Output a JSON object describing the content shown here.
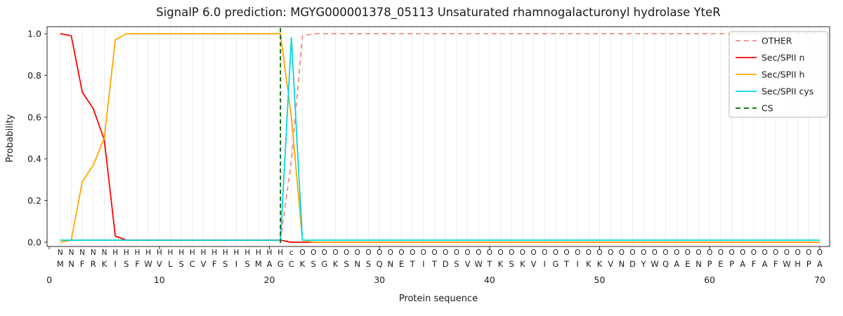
{
  "chart_data": {
    "type": "line",
    "title": "SignalP 6.0 prediction: MGYG000001378_05113 Unsaturated rhamnogalacturonyl hydrolase YteR",
    "xlabel": "Protein sequence",
    "ylabel": "Probability",
    "xlim": [
      -0.2,
      70.9
    ],
    "ylim": [
      0.0,
      1.0
    ],
    "xticks": [
      0,
      10,
      20,
      30,
      40,
      50,
      60,
      70
    ],
    "yticks": [
      0.0,
      0.2,
      0.4,
      0.6,
      0.8,
      1.0
    ],
    "grid": "vertical-gridline-per-residue",
    "legend_position": "upper-right",
    "x_start": 1,
    "sequence": "MNFRKISFWVLSCVFSISMAGCKSGKSNSQNETITDSVWTKSKVIGTIKKVNDYWQAENPEPAFAFWHPA",
    "region_labels": "NNNNNHHHHHHHHHHHHHHHHcOOOOOOOOOOOOOOOOOOOOOOOOOOOOOOOOOOOOOOOOOOOOOOOO",
    "region_colors": {
      "N": "#ff0000",
      "H": "#ffa600",
      "c": "#00d8e0",
      "O": "#9e9e9e"
    },
    "series": [
      {
        "name": "OTHER",
        "color": "#f28c8c",
        "dash": true,
        "values": [
          0.01,
          0.01,
          0.01,
          0.01,
          0.01,
          0.01,
          0.01,
          0.01,
          0.01,
          0.01,
          0.01,
          0.01,
          0.01,
          0.01,
          0.01,
          0.01,
          0.01,
          0.01,
          0.01,
          0.01,
          0.01,
          0.39,
          0.99,
          1.0,
          1.0,
          1.0,
          1.0,
          1.0,
          1.0,
          1.0,
          1.0,
          1.0,
          1.0,
          1.0,
          1.0,
          1.0,
          1.0,
          1.0,
          1.0,
          1.0,
          1.0,
          1.0,
          1.0,
          1.0,
          1.0,
          1.0,
          1.0,
          1.0,
          1.0,
          1.0,
          1.0,
          1.0,
          1.0,
          1.0,
          1.0,
          1.0,
          1.0,
          1.0,
          1.0,
          1.0,
          1.0,
          1.0,
          1.0,
          1.0,
          1.0,
          1.0,
          1.0,
          1.0,
          1.0,
          1.0
        ]
      },
      {
        "name": "Sec/SPII n",
        "color": "#ff0000",
        "dash": false,
        "values": [
          1.0,
          0.99,
          0.72,
          0.64,
          0.49,
          0.03,
          0.01,
          0.01,
          0.01,
          0.01,
          0.01,
          0.01,
          0.01,
          0.01,
          0.01,
          0.01,
          0.01,
          0.01,
          0.01,
          0.01,
          0.01,
          0.0,
          0.0,
          0.0,
          0.0,
          0.0,
          0.0,
          0.0,
          0.0,
          0.0,
          0.0,
          0.0,
          0.0,
          0.0,
          0.0,
          0.0,
          0.0,
          0.0,
          0.0,
          0.0,
          0.0,
          0.0,
          0.0,
          0.0,
          0.0,
          0.0,
          0.0,
          0.0,
          0.0,
          0.0,
          0.0,
          0.0,
          0.0,
          0.0,
          0.0,
          0.0,
          0.0,
          0.0,
          0.0,
          0.0,
          0.0,
          0.0,
          0.0,
          0.0,
          0.0,
          0.0,
          0.0,
          0.0,
          0.0,
          0.0
        ]
      },
      {
        "name": "Sec/SPII h",
        "color": "#ffa600",
        "dash": false,
        "values": [
          0.0,
          0.01,
          0.29,
          0.37,
          0.5,
          0.97,
          1.0,
          1.0,
          1.0,
          1.0,
          1.0,
          1.0,
          1.0,
          1.0,
          1.0,
          1.0,
          1.0,
          1.0,
          1.0,
          1.0,
          1.0,
          0.6,
          0.01,
          0.0,
          0.0,
          0.0,
          0.0,
          0.0,
          0.0,
          0.0,
          0.0,
          0.0,
          0.0,
          0.0,
          0.0,
          0.0,
          0.0,
          0.0,
          0.0,
          0.0,
          0.0,
          0.0,
          0.0,
          0.0,
          0.0,
          0.0,
          0.0,
          0.0,
          0.0,
          0.0,
          0.0,
          0.0,
          0.0,
          0.0,
          0.0,
          0.0,
          0.0,
          0.0,
          0.0,
          0.0,
          0.0,
          0.0,
          0.0,
          0.0,
          0.0,
          0.0,
          0.0,
          0.0,
          0.0,
          0.0
        ]
      },
      {
        "name": "Sec/SPII cys",
        "color": "#00d8e0",
        "dash": false,
        "values": [
          0.01,
          0.01,
          0.01,
          0.01,
          0.01,
          0.01,
          0.01,
          0.01,
          0.01,
          0.01,
          0.01,
          0.01,
          0.01,
          0.01,
          0.01,
          0.01,
          0.01,
          0.01,
          0.01,
          0.01,
          0.01,
          0.98,
          0.01,
          0.01,
          0.01,
          0.01,
          0.01,
          0.01,
          0.01,
          0.01,
          0.01,
          0.01,
          0.01,
          0.01,
          0.01,
          0.01,
          0.01,
          0.01,
          0.01,
          0.01,
          0.01,
          0.01,
          0.01,
          0.01,
          0.01,
          0.01,
          0.01,
          0.01,
          0.01,
          0.01,
          0.01,
          0.01,
          0.01,
          0.01,
          0.01,
          0.01,
          0.01,
          0.01,
          0.01,
          0.01,
          0.01,
          0.01,
          0.01,
          0.01,
          0.01,
          0.01,
          0.01,
          0.01,
          0.01,
          0.01
        ]
      }
    ],
    "cs_line": {
      "label": "CS",
      "position": 21,
      "color": "#006400",
      "dash": true
    },
    "legend": [
      {
        "label": "OTHER",
        "color": "#f28c8c",
        "dash": true
      },
      {
        "label": "Sec/SPII n",
        "color": "#ff0000",
        "dash": false
      },
      {
        "label": "Sec/SPII h",
        "color": "#ffa600",
        "dash": false
      },
      {
        "label": "Sec/SPII cys",
        "color": "#00d8e0",
        "dash": false
      },
      {
        "label": "CS",
        "color": "#006400",
        "dash": true
      }
    ]
  }
}
